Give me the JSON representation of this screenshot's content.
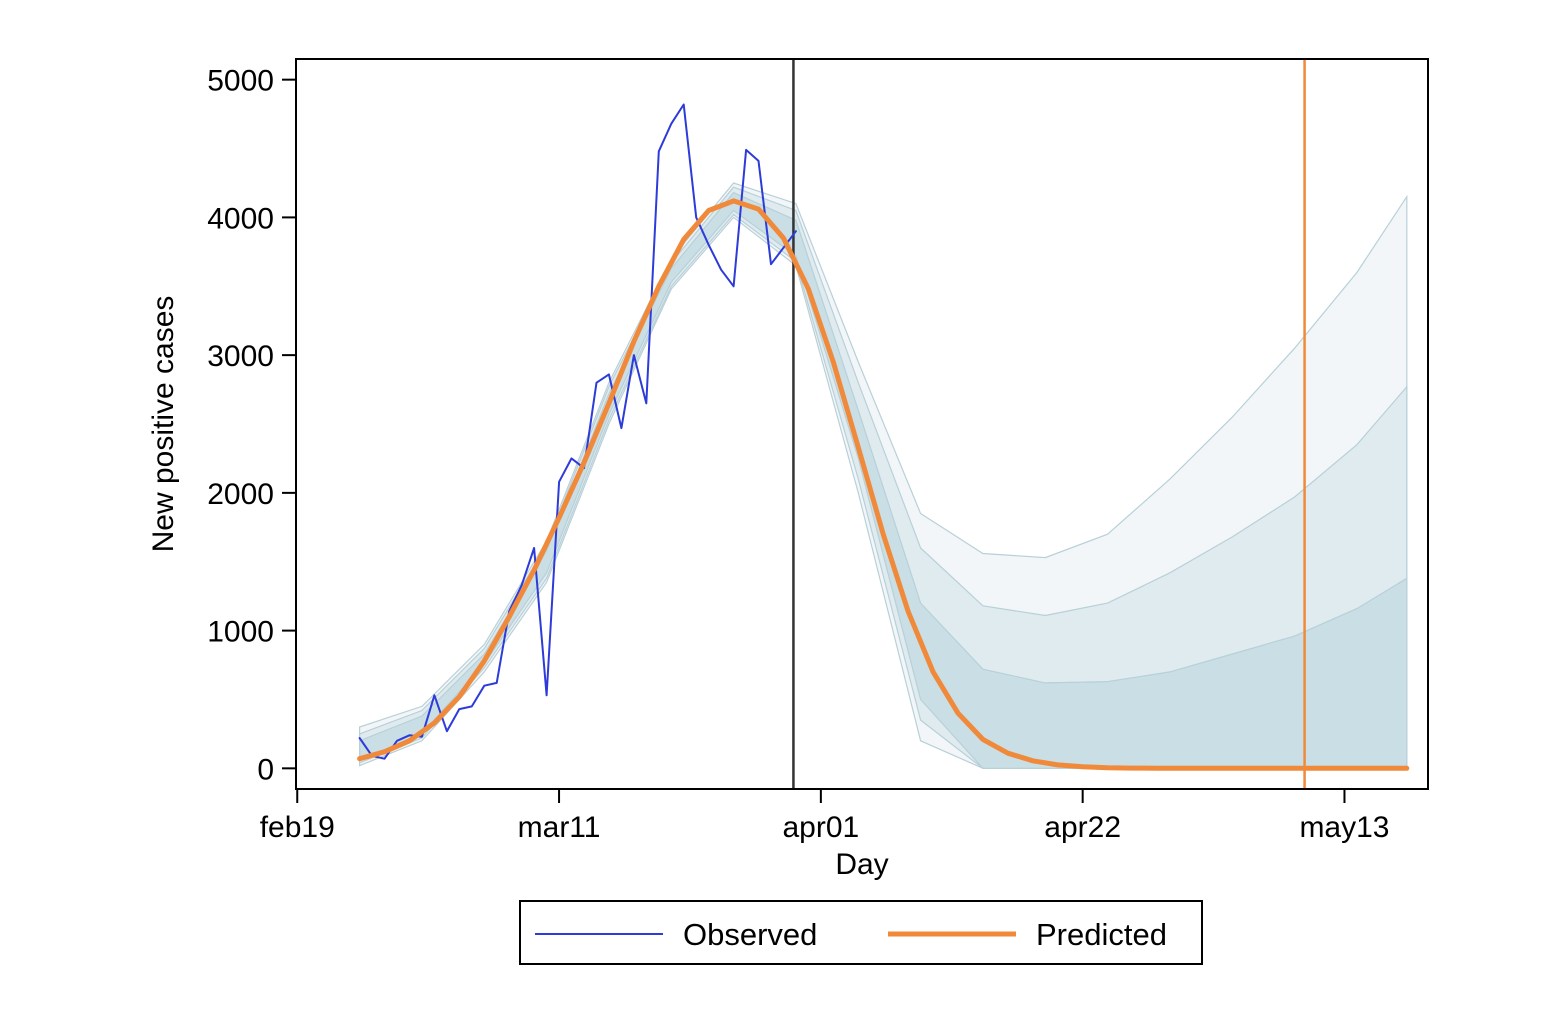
{
  "chart_data": {
    "type": "line",
    "title": "",
    "xlabel": "Day",
    "ylabel": "New positive cases",
    "x_ticks": [
      {
        "label": "feb19",
        "day": 0
      },
      {
        "label": "mar11",
        "day": 21
      },
      {
        "label": "apr01",
        "day": 42
      },
      {
        "label": "apr22",
        "day": 63
      },
      {
        "label": "may13",
        "day": 84
      }
    ],
    "xlim": [
      -0.1,
      90.7
    ],
    "y_ticks": [
      0,
      1000,
      2000,
      3000,
      4000,
      5000
    ],
    "ylim": [
      -150,
      5150
    ],
    "grid": false,
    "legend": {
      "placement": "bottom",
      "entries": [
        "Observed",
        "Predicted"
      ]
    },
    "reference_lines": [
      {
        "day": 39.8,
        "color": "#333333"
      },
      {
        "day": 80.8,
        "color": "#f08a3a"
      }
    ],
    "colors": {
      "observed": "#2d3bd8",
      "predicted": "#f08a3a",
      "band": "#a9c9d4"
    },
    "series": [
      {
        "name": "Observed",
        "x": [
          5,
          6,
          7,
          8,
          9,
          10,
          11,
          12,
          13,
          14,
          15,
          16,
          17,
          18,
          19,
          20,
          21,
          22,
          23,
          24,
          25,
          26,
          27,
          28,
          29,
          30,
          31,
          32,
          33,
          34,
          35,
          36,
          37,
          38,
          39,
          40
        ],
        "y": [
          220,
          90,
          70,
          200,
          240,
          230,
          530,
          270,
          430,
          450,
          600,
          620,
          1140,
          1330,
          1600,
          530,
          2080,
          2250,
          2180,
          2800,
          2860,
          2470,
          3000,
          2650,
          4480,
          4680,
          4820,
          4000,
          3800,
          3620,
          3500,
          4490,
          4410,
          3660,
          3780,
          3900
        ]
      },
      {
        "name": "Predicted",
        "x": [
          5,
          7,
          9,
          11,
          13,
          15,
          17,
          19,
          21,
          23,
          25,
          27,
          29,
          31,
          33,
          35,
          37,
          39,
          41,
          43,
          45,
          47,
          49,
          51,
          53,
          55,
          57,
          59,
          61,
          63,
          65,
          67,
          69,
          71,
          73,
          75,
          77,
          79,
          81,
          83,
          85,
          87,
          89
        ],
        "y": [
          70,
          120,
          200,
          330,
          520,
          780,
          1100,
          1440,
          1820,
          2220,
          2650,
          3100,
          3500,
          3840,
          4050,
          4120,
          4060,
          3850,
          3480,
          2950,
          2330,
          1700,
          1140,
          700,
          400,
          210,
          110,
          55,
          25,
          12,
          5,
          2,
          1,
          0,
          0,
          0,
          0,
          0,
          0,
          0,
          0,
          0,
          0
        ]
      }
    ],
    "uncertainty_bands": [
      {
        "x": [
          5,
          10,
          15,
          20,
          25,
          30,
          35,
          40,
          45,
          50,
          55,
          60,
          65,
          70,
          75,
          80,
          85,
          89
        ],
        "lower": [
          20,
          200,
          700,
          1350,
          2500,
          3480,
          4000,
          3650,
          2000,
          200,
          0,
          0,
          0,
          0,
          0,
          0,
          0,
          0
        ],
        "upper": [
          300,
          450,
          900,
          1650,
          2800,
          3700,
          4250,
          4100,
          2950,
          1850,
          1560,
          1530,
          1700,
          2100,
          2550,
          3050,
          3600,
          4150
        ]
      },
      {
        "x": [
          5,
          10,
          15,
          20,
          25,
          30,
          35,
          40,
          45,
          50,
          55,
          60,
          65,
          70,
          75,
          80,
          85,
          89
        ],
        "lower": [
          40,
          220,
          730,
          1380,
          2530,
          3500,
          4020,
          3680,
          2100,
          350,
          0,
          0,
          0,
          0,
          0,
          0,
          0,
          0
        ],
        "upper": [
          250,
          420,
          870,
          1620,
          2770,
          3670,
          4220,
          4050,
          2800,
          1600,
          1180,
          1110,
          1200,
          1420,
          1680,
          1970,
          2350,
          2770
        ]
      },
      {
        "x": [
          5,
          10,
          15,
          20,
          25,
          30,
          35,
          40,
          45,
          50,
          55,
          60,
          65,
          70,
          75,
          80,
          85,
          89
        ],
        "lower": [
          60,
          250,
          760,
          1420,
          2570,
          3530,
          4050,
          3720,
          2250,
          500,
          0,
          0,
          0,
          0,
          0,
          0,
          0,
          0
        ],
        "upper": [
          200,
          380,
          830,
          1580,
          2720,
          3630,
          4180,
          3980,
          2600,
          1200,
          720,
          620,
          630,
          700,
          830,
          960,
          1160,
          1380
        ]
      }
    ]
  }
}
